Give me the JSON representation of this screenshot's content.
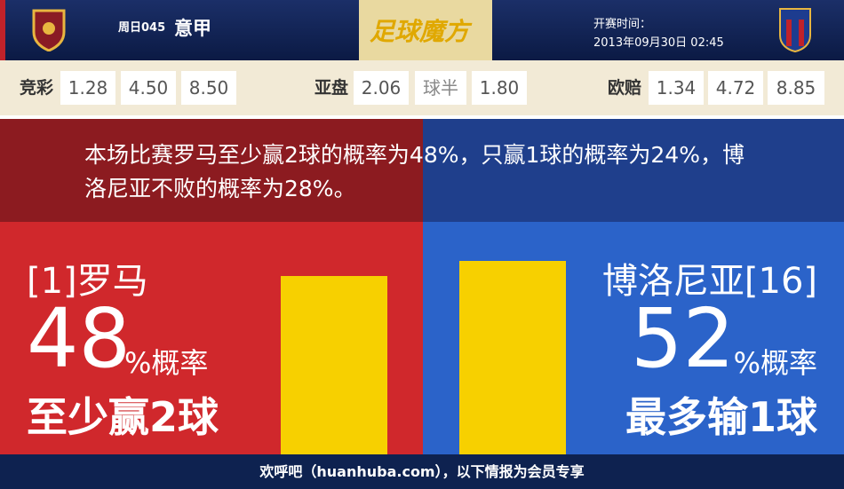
{
  "header": {
    "match_no": "周日045",
    "league": "意甲",
    "brand": "足球魔方",
    "kickoff_label": "开赛时间：",
    "kickoff_time": "2013年09月30日 02:45"
  },
  "odds": {
    "jingcai": {
      "label": "竞彩",
      "values": [
        "1.28",
        "4.50",
        "8.50"
      ]
    },
    "asian": {
      "label": "亚盘",
      "values": [
        "2.06",
        "球半",
        "1.80"
      ]
    },
    "euro": {
      "label": "欧赔",
      "values": [
        "1.34",
        "4.72",
        "8.85"
      ]
    }
  },
  "summary": "本场比赛罗马至少赢2球的概率为48%，只赢1球的概率为24%，博洛尼亚不败的概率为28%。",
  "home": {
    "name": "[1]罗马",
    "percent": 48,
    "unit": "%概率",
    "outcome": "至少赢2球"
  },
  "away": {
    "name": "博洛尼亚[16]",
    "percent": 52,
    "unit": "%概率",
    "outcome": "最多输1球"
  },
  "footer": "欢呼吧（huanhuba.com），以下情报为会员专享"
}
